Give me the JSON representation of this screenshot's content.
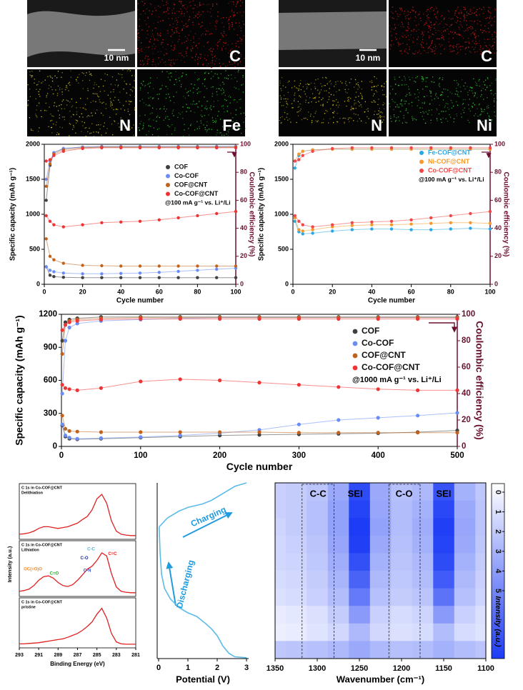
{
  "images": {
    "left": {
      "scale_bar": "10 nm",
      "maps": [
        "C",
        "N",
        "Fe"
      ]
    },
    "right": {
      "scale_bar": "10 nm",
      "maps": [
        "C",
        "N",
        "Ni"
      ]
    }
  },
  "chart_data": [
    {
      "type": "dual-axis",
      "xlabel": "Cycle number",
      "ylabel": "Specific capacity (mAh g⁻¹)",
      "y2label": "Coulombic efficiency (%)",
      "annotation": "@100 mA g⁻¹ vs. Li⁺/Li",
      "legend": "upper-right",
      "x": [
        1,
        3,
        5,
        10,
        20,
        30,
        40,
        50,
        60,
        70,
        80,
        90,
        100
      ],
      "xlim": [
        0,
        100
      ],
      "xticks": [
        0,
        20,
        40,
        60,
        80,
        100
      ],
      "ylim": [
        0,
        2000
      ],
      "yticks": [
        0,
        500,
        1000,
        1500,
        2000
      ],
      "y2lim": [
        0,
        100
      ],
      "y2ticks": [
        0,
        20,
        40,
        60,
        80,
        100
      ],
      "series": [
        {
          "name": "COF",
          "color": "#404040",
          "values": [
            250,
            130,
            110,
            100,
            95,
            95,
            95,
            95,
            95,
            95,
            95,
            95,
            95
          ],
          "ce_values": [
            60,
            85,
            94,
            97,
            98,
            98,
            98,
            98,
            98,
            98,
            98,
            98,
            98
          ]
        },
        {
          "name": "Co-COF",
          "color": "#6a8cf5",
          "values": [
            250,
            200,
            180,
            160,
            150,
            150,
            155,
            160,
            170,
            185,
            200,
            215,
            230
          ],
          "ce_values": [
            75,
            88,
            94,
            97,
            98,
            98.5,
            98.5,
            98.5,
            98.5,
            98.5,
            98.5,
            98.5,
            98.5
          ]
        },
        {
          "name": "COF@CNT",
          "color": "#c0621c",
          "values": [
            650,
            400,
            350,
            300,
            270,
            265,
            260,
            260,
            260,
            260,
            260,
            260,
            260
          ],
          "ce_values": [
            70,
            86,
            93,
            96,
            97.5,
            98,
            98,
            98,
            98,
            98,
            98,
            98,
            98
          ]
        },
        {
          "name": "Co-COF@CNT",
          "color": "#ee3434",
          "values": [
            980,
            900,
            850,
            820,
            850,
            880,
            890,
            900,
            920,
            950,
            980,
            1010,
            1040
          ],
          "ce_values": [
            88,
            89,
            92,
            95,
            97,
            97.5,
            97.5,
            97.5,
            97.5,
            97.5,
            97.5,
            97.5,
            97.5
          ]
        }
      ]
    },
    {
      "type": "dual-axis",
      "xlabel": "Cycle number",
      "ylabel": "Specific capacity (mAh g⁻¹)",
      "y2label": "Coulombic efficiency (%)",
      "annotation": "@100 mA g⁻¹ vs. Li⁺/Li",
      "legend": "upper-right",
      "x": [
        1,
        3,
        5,
        10,
        20,
        30,
        40,
        50,
        60,
        70,
        80,
        90,
        100
      ],
      "xlim": [
        0,
        100
      ],
      "xticks": [
        0,
        20,
        40,
        60,
        80,
        100
      ],
      "ylim": [
        0,
        2000
      ],
      "yticks": [
        0,
        500,
        1000,
        1500,
        2000
      ],
      "y2lim": [
        0,
        100
      ],
      "y2ticks": [
        0,
        20,
        40,
        60,
        80,
        100
      ],
      "series": [
        {
          "name": "Fe-COF@CNT",
          "color": "#2aa8e4",
          "values": [
            900,
            750,
            720,
            730,
            760,
            780,
            790,
            790,
            780,
            780,
            790,
            800,
            790
          ],
          "ce_values": [
            83,
            92,
            95,
            96,
            96.5,
            96.5,
            96.5,
            96.5,
            96.5,
            96.5,
            96.5,
            96.5,
            96.5
          ]
        },
        {
          "name": "Ni-COF@CNT",
          "color": "#f59a2a",
          "values": [
            950,
            780,
            760,
            780,
            820,
            840,
            850,
            850,
            860,
            870,
            880,
            880,
            870
          ],
          "ce_values": [
            88,
            93,
            95,
            96,
            96.5,
            96.5,
            96.5,
            96.5,
            96.5,
            96.5,
            96.5,
            96.5,
            96.5
          ]
        },
        {
          "name": "Co-COF@CNT",
          "color": "#f04848",
          "values": [
            980,
            900,
            850,
            820,
            850,
            880,
            890,
            900,
            920,
            950,
            980,
            1010,
            1040
          ],
          "ce_values": [
            88,
            89,
            92,
            95,
            97,
            97.5,
            97.5,
            97.5,
            97.5,
            97.5,
            97.5,
            97.5,
            97.5
          ]
        }
      ]
    },
    {
      "type": "dual-axis",
      "xlabel": "Cycle number",
      "ylabel": "Specific capacity (mAh g⁻¹)",
      "y2label": "Coulombic efficiency (%)",
      "annotation": "@1000 mA g⁻¹ vs. Li⁺/Li",
      "legend": "upper-right",
      "x": [
        1,
        5,
        10,
        20,
        50,
        100,
        150,
        200,
        250,
        300,
        350,
        400,
        450,
        500
      ],
      "xlim": [
        0,
        500
      ],
      "xticks": [
        0,
        100,
        200,
        300,
        400,
        500
      ],
      "ylim": [
        0,
        1200
      ],
      "yticks": [
        0,
        300,
        600,
        900,
        1200
      ],
      "y2lim": [
        0,
        100
      ],
      "y2ticks": [
        0,
        20,
        40,
        60,
        80,
        100
      ],
      "series": [
        {
          "name": "COF",
          "color": "#404040",
          "values": [
            190,
            90,
            70,
            65,
            70,
            80,
            90,
            100,
            105,
            110,
            115,
            120,
            130,
            145
          ],
          "ce_values": [
            80,
            94,
            96,
            97,
            98,
            98,
            98,
            98,
            98,
            98,
            98,
            98,
            98,
            98
          ]
        },
        {
          "name": "Co-COF",
          "color": "#6a8cf5",
          "values": [
            200,
            100,
            80,
            70,
            75,
            85,
            100,
            120,
            150,
            200,
            240,
            260,
            280,
            305
          ],
          "ce_values": [
            40,
            80,
            90,
            93,
            95,
            96,
            97,
            97.5,
            97.5,
            97.5,
            97.5,
            97.5,
            97.5,
            97.5
          ]
        },
        {
          "name": "COF@CNT",
          "color": "#c0621c",
          "values": [
            280,
            160,
            140,
            135,
            130,
            130,
            130,
            130,
            130,
            125,
            125,
            125,
            125,
            125
          ],
          "ce_values": [
            70,
            92,
            95,
            96,
            97,
            97.5,
            97.5,
            97.5,
            97.5,
            97.5,
            97.5,
            97.5,
            97.5,
            97.5
          ]
        },
        {
          "name": "Co-COF@CNT",
          "color": "#ee3434",
          "values": [
            560,
            530,
            520,
            510,
            530,
            590,
            610,
            600,
            580,
            560,
            540,
            520,
            510,
            510
          ],
          "ce_values": [
            88,
            92,
            94,
            95,
            96,
            96.5,
            96.5,
            96.5,
            96.5,
            96.5,
            96.5,
            96.5,
            96.5,
            96.5
          ]
        }
      ]
    },
    {
      "type": "xps",
      "xlabel": "Binding Energy (eV)",
      "ylabel": "Intensity (a.u.)",
      "xlim": [
        293,
        281
      ],
      "xticks": [
        293,
        291,
        289,
        287,
        285,
        283,
        281
      ],
      "x": [
        293,
        292.5,
        292,
        291.5,
        291,
        290.5,
        290,
        289.5,
        289,
        288.5,
        288,
        287.5,
        287,
        286.5,
        286,
        285.5,
        285,
        284.5,
        284,
        283.5,
        283,
        282.5,
        282,
        281.5,
        281
      ],
      "color": "#e02020",
      "spectra": [
        {
          "title": "C 1s in Co-COF@CNT",
          "condition": "Delithiation",
          "values": [
            0.05,
            0.06,
            0.08,
            0.12,
            0.18,
            0.22,
            0.22,
            0.2,
            0.18,
            0.2,
            0.22,
            0.26,
            0.3,
            0.38,
            0.45,
            0.6,
            0.85,
            0.95,
            0.75,
            0.35,
            0.12,
            0.05,
            0.03,
            0.02,
            0.02
          ]
        },
        {
          "title": "C 1s in Co-COF@CNT",
          "condition": "Lithiation",
          "values": [
            0.05,
            0.07,
            0.1,
            0.18,
            0.3,
            0.38,
            0.4,
            0.35,
            0.25,
            0.18,
            0.16,
            0.2,
            0.3,
            0.42,
            0.55,
            0.62,
            0.75,
            0.92,
            0.85,
            0.45,
            0.15,
            0.05,
            0.03,
            0.02,
            0.02
          ]
        },
        {
          "title": "C 1s in Co-COF@CNT",
          "condition": "pristine",
          "values": [
            0.03,
            0.03,
            0.04,
            0.05,
            0.06,
            0.08,
            0.1,
            0.12,
            0.14,
            0.16,
            0.2,
            0.25,
            0.3,
            0.38,
            0.48,
            0.6,
            0.8,
            0.95,
            0.7,
            0.3,
            0.08,
            0.03,
            0.02,
            0.02,
            0.02
          ]
        }
      ],
      "peak_labels": [
        {
          "text": "C-C",
          "color": "#3ab8e8",
          "x": 285.6,
          "y": 1.0
        },
        {
          "text": "C-O",
          "color": "#1a2a9a",
          "x": 286.3,
          "y": 0.8
        },
        {
          "text": "C-N",
          "color": "#3050d0",
          "x": 286.0,
          "y": 0.52
        },
        {
          "text": "C=C",
          "color": "#e02020",
          "x": 283.4,
          "y": 0.9
        },
        {
          "text": "OC(=O)O",
          "color": "#f08a30",
          "x": 291.6,
          "y": 0.55
        },
        {
          "text": "C=O",
          "color": "#30a030",
          "x": 289.4,
          "y": 0.45
        }
      ]
    },
    {
      "type": "profile",
      "xlabel": "Potential (V)",
      "xlim": [
        0,
        3
      ],
      "xticks": [
        0,
        1,
        2,
        3
      ],
      "ylim": [
        0,
        100
      ],
      "color": "#5bbbe8",
      "curves": [
        {
          "name": "Discharging",
          "x": [
            0.02,
            0.05,
            0.1,
            0.2,
            0.4,
            0.7,
            1.0,
            1.3,
            1.6,
            1.8,
            2.0,
            2.2,
            2.4,
            2.6,
            3.0
          ],
          "y": [
            75,
            60,
            48,
            40,
            34,
            29,
            26,
            24,
            20,
            17,
            13,
            7,
            3,
            1,
            0.5
          ]
        },
        {
          "name": "Charging",
          "x": [
            0.02,
            0.3,
            0.7,
            1.0,
            1.5,
            1.8,
            2.2,
            2.6,
            3.0
          ],
          "y": [
            75,
            80,
            84,
            86,
            88,
            90,
            94,
            98,
            100
          ]
        }
      ]
    },
    {
      "type": "heatmap",
      "xlabel": "Wavenumber (cm⁻¹)",
      "xlim": [
        1350,
        1100
      ],
      "xticks": [
        1350,
        1300,
        1250,
        1200,
        1150,
        1100
      ],
      "x": [
        1350,
        1325,
        1300,
        1275,
        1250,
        1225,
        1200,
        1175,
        1150,
        1125,
        1100
      ],
      "z": [
        [
          1.2,
          1.3,
          1.5,
          2.2,
          4.6,
          2.2,
          1.6,
          1.8,
          4.4,
          2.0,
          1.4
        ],
        [
          1.2,
          1.3,
          1.6,
          2.4,
          4.8,
          2.3,
          1.7,
          2.0,
          4.7,
          2.2,
          1.5
        ],
        [
          1.1,
          1.3,
          1.6,
          2.4,
          5.0,
          2.4,
          1.7,
          2.1,
          4.9,
          2.3,
          1.5
        ],
        [
          1.0,
          1.2,
          1.5,
          2.3,
          4.9,
          2.2,
          1.6,
          2.0,
          4.8,
          2.2,
          1.4
        ],
        [
          1.0,
          1.1,
          1.4,
          2.1,
          4.5,
          2.0,
          1.5,
          1.8,
          4.6,
          2.0,
          1.3
        ],
        [
          0.9,
          1.0,
          1.3,
          1.9,
          4.0,
          1.8,
          1.4,
          1.7,
          4.2,
          1.8,
          1.2
        ],
        [
          0.8,
          0.9,
          1.2,
          1.7,
          3.4,
          1.6,
          1.3,
          1.5,
          3.6,
          1.6,
          1.1
        ],
        [
          0.5,
          0.6,
          0.8,
          1.3,
          2.6,
          1.2,
          0.9,
          1.1,
          2.6,
          1.2,
          0.8
        ],
        [
          0.4,
          0.5,
          0.7,
          1.0,
          1.8,
          1.0,
          0.8,
          0.9,
          1.7,
          0.9,
          0.7
        ],
        [
          1.4,
          1.5,
          1.6,
          1.8,
          2.2,
          1.8,
          1.6,
          1.7,
          2.0,
          1.7,
          1.5
        ]
      ],
      "colors": [
        "#ffffff",
        "#1c3cf5"
      ],
      "dividers": [
        1318,
        1280,
        1215,
        1178
      ],
      "annotations": [
        {
          "text": "C-C",
          "x": 1299
        },
        {
          "text": "SEI",
          "x": 1255
        },
        {
          "text": "C-O",
          "x": 1197
        },
        {
          "text": "SEI",
          "x": 1150
        }
      ],
      "colorbar": {
        "label": "Intensity (a.u.)",
        "clim": [
          0,
          5
        ],
        "ticks": [
          0,
          1,
          2,
          3,
          4,
          5
        ]
      }
    }
  ]
}
